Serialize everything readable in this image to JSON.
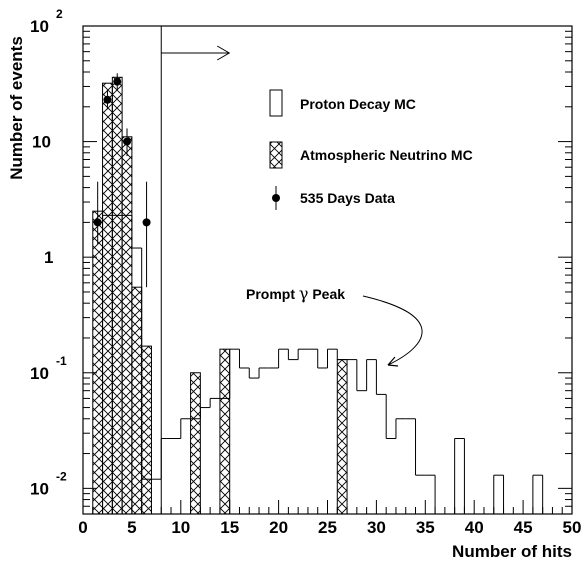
{
  "chart_data": {
    "type": "bar",
    "subtype": "histogram",
    "xlabel": "Number of hits",
    "ylabel": "Number of events",
    "xlim": [
      0,
      50
    ],
    "ylim": [
      0.006,
      100
    ],
    "yscale": "log",
    "bin_width": 1.0,
    "x_ticks": [
      {
        "value": 0,
        "label": "0"
      },
      {
        "value": 5,
        "label": "5"
      },
      {
        "value": 10,
        "label": "10"
      },
      {
        "value": 15,
        "label": "15"
      },
      {
        "value": 20,
        "label": "20"
      },
      {
        "value": 25,
        "label": "25"
      },
      {
        "value": 30,
        "label": "30"
      },
      {
        "value": 35,
        "label": "35"
      },
      {
        "value": 40,
        "label": "40"
      },
      {
        "value": 45,
        "label": "45"
      },
      {
        "value": 50,
        "label": "50"
      }
    ],
    "y_ticks": [
      {
        "value": 100,
        "base": "10",
        "exp": "2"
      },
      {
        "value": 10,
        "base": "10",
        "exp": ""
      },
      {
        "value": 1,
        "base": "1",
        "exp": ""
      },
      {
        "value": 0.1,
        "base": "10",
        "exp": "-1"
      },
      {
        "value": 0.01,
        "base": "10",
        "exp": "-2"
      }
    ],
    "series": [
      {
        "name": "Proton Decay MC",
        "style": "outline",
        "bins": [
          {
            "x0": 1,
            "value": 2.0
          },
          {
            "x0": 2,
            "value": 2.3
          },
          {
            "x0": 3,
            "value": 2.3
          },
          {
            "x0": 4,
            "value": 2.3
          },
          {
            "x0": 5,
            "value": 1.2
          },
          {
            "x0": 6,
            "value": 0.012
          },
          {
            "x0": 7,
            "value": 0.012
          },
          {
            "x0": 8,
            "value": 0.027
          },
          {
            "x0": 9,
            "value": 0.027
          },
          {
            "x0": 10,
            "value": 0.04
          },
          {
            "x0": 11,
            "value": 0.04
          },
          {
            "x0": 12,
            "value": 0.05
          },
          {
            "x0": 13,
            "value": 0.06
          },
          {
            "x0": 14,
            "value": 0.06
          },
          {
            "x0": 15,
            "value": 0.16
          },
          {
            "x0": 16,
            "value": 0.11
          },
          {
            "x0": 17,
            "value": 0.09
          },
          {
            "x0": 18,
            "value": 0.11
          },
          {
            "x0": 19,
            "value": 0.11
          },
          {
            "x0": 20,
            "value": 0.16
          },
          {
            "x0": 21,
            "value": 0.13
          },
          {
            "x0": 22,
            "value": 0.16
          },
          {
            "x0": 23,
            "value": 0.16
          },
          {
            "x0": 24,
            "value": 0.11
          },
          {
            "x0": 25,
            "value": 0.16
          },
          {
            "x0": 26,
            "value": 0.13
          },
          {
            "x0": 27,
            "value": 0.13
          },
          {
            "x0": 28,
            "value": 0.07
          },
          {
            "x0": 29,
            "value": 0.13
          },
          {
            "x0": 30,
            "value": 0.065
          },
          {
            "x0": 31,
            "value": 0.027
          },
          {
            "x0": 32,
            "value": 0.04
          },
          {
            "x0": 33,
            "value": 0.04
          },
          {
            "x0": 34,
            "value": 0.013
          },
          {
            "x0": 35,
            "value": 0.013
          },
          {
            "x0": 36,
            "value": 0.006
          },
          {
            "x0": 37,
            "value": 0.006
          },
          {
            "x0": 38,
            "value": 0.027
          },
          {
            "x0": 39,
            "value": 0.006
          },
          {
            "x0": 40,
            "value": 0.006
          },
          {
            "x0": 41,
            "value": 0.006
          },
          {
            "x0": 42,
            "value": 0.013
          },
          {
            "x0": 43,
            "value": 0.006
          },
          {
            "x0": 44,
            "value": 0.006
          },
          {
            "x0": 45,
            "value": 0.006
          },
          {
            "x0": 46,
            "value": 0.013
          },
          {
            "x0": 47,
            "value": 0.006
          }
        ]
      },
      {
        "name": "Atmospheric Neutrino MC",
        "style": "crosshatch",
        "bins": [
          {
            "x0": 1,
            "value": 2.5
          },
          {
            "x0": 2,
            "value": 32
          },
          {
            "x0": 3,
            "value": 36
          },
          {
            "x0": 4,
            "value": 11
          },
          {
            "x0": 5,
            "value": 0.55
          },
          {
            "x0": 6,
            "value": 0.17
          },
          {
            "x0": 11,
            "value": 0.1
          },
          {
            "x0": 14,
            "value": 0.16
          },
          {
            "x0": 26,
            "value": 0.13
          }
        ]
      },
      {
        "name": "535 Days Data",
        "style": "points",
        "points": [
          {
            "x": 1.5,
            "y": 2,
            "yerr_lo": 1.3,
            "yerr_hi": 4.5
          },
          {
            "x": 2.5,
            "y": 23,
            "yerr_lo": 19,
            "yerr_hi": 28
          },
          {
            "x": 3.5,
            "y": 33,
            "yerr_lo": 28,
            "yerr_hi": 39
          },
          {
            "x": 4.5,
            "y": 10,
            "yerr_lo": 7.5,
            "yerr_hi": 13
          },
          {
            "x": 6.5,
            "y": 2,
            "yerr_lo": 0.55,
            "yerr_hi": 4.5
          }
        ]
      }
    ],
    "cut": {
      "x": 8,
      "direction": "right"
    },
    "legend": {
      "position": "top-right",
      "items": [
        {
          "label": "Proton Decay MC",
          "marker": "box"
        },
        {
          "label": "Atmospheric Neutrino MC",
          "marker": "hatched-box"
        },
        {
          "label": "535 Days Data",
          "marker": "point"
        }
      ]
    },
    "annotations": [
      {
        "text_pre": "Prompt ",
        "symbol": "γ",
        "text_post": " Peak"
      }
    ],
    "grid": false
  }
}
